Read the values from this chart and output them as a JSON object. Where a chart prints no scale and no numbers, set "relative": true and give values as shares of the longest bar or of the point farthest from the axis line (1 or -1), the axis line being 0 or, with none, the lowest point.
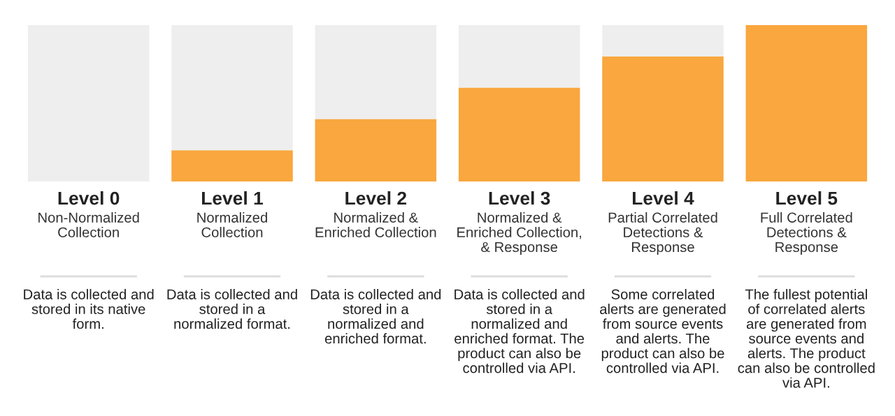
{
  "chart_data": {
    "type": "bar",
    "relative": true,
    "categories": [
      "Level 0\nNon-Normalized\nCollection",
      "Level 1\nNormalized\nCollection",
      "Level 2\nNormalized &\nEnriched Collection",
      "Level 3\nNormalized &\nEnriched Collection,\n& Response",
      "Level 4\nPartial Correlated\nDetections &\nResponse",
      "Level 5\nFull Correlated\nDetections &\nResponse"
    ],
    "stacked": true,
    "series": [
      {
        "color": "#f9a73e",
        "values": [
          0,
          0.2,
          0.4,
          0.6,
          0.8,
          1
        ]
      },
      {
        "color": "#eeeeee",
        "values": [
          1,
          0.8,
          0.6,
          0.4,
          0.2,
          0
        ]
      }
    ],
    "annotations": [
      "Data is collected and\nstored in its native\nform.",
      "Data is collected and\nstored in a\nnormalized format.",
      "Data is collected and\nstored in a\nnormalized and\nenriched format.",
      "Data is collected and\nstored in a\nnormalized and\nenriched format. The\nproduct can also be\ncontrolled via API.",
      "Some correlated\nalerts are generated\nfrom source events\nand alerts. The\nproduct can also be\ncontrolled via API.",
      "The fullest potential\nof correlated alerts\nare generated from\nsource events and\nalerts. The product\ncan also be controlled\nvia API."
    ],
    "legend": false
  }
}
